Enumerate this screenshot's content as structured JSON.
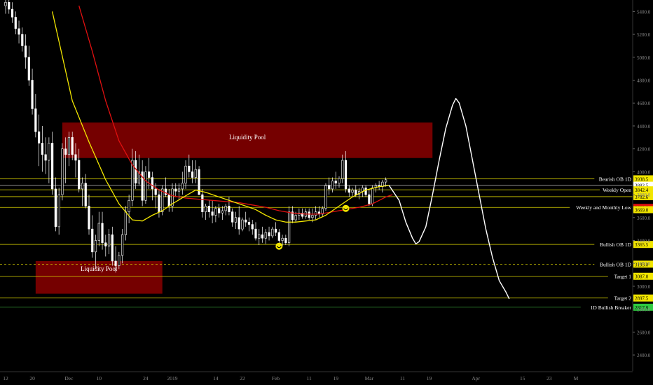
{
  "chart_data": {
    "type": "candlestick",
    "colors": {
      "background": "#000000",
      "up_candle": "#ffffff",
      "down_candle": "#ffffff",
      "ma_fast": "#f2e600",
      "ma_slow": "#e01010",
      "projection": "#ffffff",
      "level_line": "#d8d000",
      "zone_fill": "#8a0000",
      "breaker_line": "#2e8b2e",
      "breaker_tag": "#2ecc40",
      "axis_text": "#888888"
    },
    "y_axis": {
      "ylim": [
        2260,
        5500
      ],
      "ticks": [
        2400,
        2600,
        2800,
        3000,
        3200,
        3400,
        3600,
        3800,
        4000,
        4200,
        4400,
        4600,
        4800,
        5000,
        5200,
        5400
      ],
      "tick_labels": [
        "2400.0",
        "2600.0",
        "2800.0",
        "3000.0",
        "3200.0",
        "3400.0",
        "3600.0",
        "3800.0",
        "4000.0",
        "4200.0",
        "4400.0",
        "4600.0",
        "4800.0",
        "5000.0",
        "5200.0",
        "5400.0"
      ]
    },
    "x_axis": {
      "day_range": [
        0,
        132
      ],
      "ticks": [
        {
          "label": "12",
          "day": 0
        },
        {
          "label": "20",
          "day": 8
        },
        {
          "label": "Dec",
          "day": 19
        },
        {
          "label": "10",
          "day": 28
        },
        {
          "label": "24",
          "day": 42
        },
        {
          "label": "2019",
          "day": 50
        },
        {
          "label": "14",
          "day": 63
        },
        {
          "label": "22",
          "day": 71
        },
        {
          "label": "Feb",
          "day": 81
        },
        {
          "label": "11",
          "day": 91
        },
        {
          "label": "19",
          "day": 99
        },
        {
          "label": "Mar",
          "day": 109
        },
        {
          "label": "11",
          "day": 119
        },
        {
          "label": "19",
          "day": 127
        },
        {
          "label": "Apr",
          "day": 141
        },
        {
          "label": "15",
          "day": 155
        },
        {
          "label": "23",
          "day": 163
        },
        {
          "label": "M",
          "day": 171
        }
      ]
    },
    "zones": [
      {
        "label": "Liquidity Pool",
        "x0": 17,
        "x1": 128,
        "y0": 4120,
        "y1": 4430
      },
      {
        "label": "Liquidity Pool",
        "x0": 9,
        "x1": 47,
        "y0": 2935,
        "y1": 3220
      }
    ],
    "levels": [
      {
        "label": "Bearish OB 1D",
        "value": 3938.5,
        "tag": "3938.5",
        "style": "solid",
        "tag_color": "#f2e600"
      },
      {
        "label": "",
        "value": 3882.5,
        "tag": "3882.5",
        "style": "solid",
        "tag_color": "#ffffff"
      },
      {
        "label": "Weekly Open",
        "value": 3842.4,
        "tag": "3842.4",
        "style": "solid",
        "tag_color": "#f2e600"
      },
      {
        "label": "",
        "value": 3782.6,
        "tag": "3782.6",
        "style": "solid",
        "tag_color": "#f2e600"
      },
      {
        "label": "Weekly and Monthly Low",
        "value": 3689.0,
        "tag": "3689.0",
        "style": "solid",
        "tag_color": "#e01010"
      },
      {
        "label": "",
        "value": 3669.0,
        "tag": "3669.0",
        "style": "none",
        "tag_color": "#f2e600"
      },
      {
        "label": "Bullish OB 1D",
        "value": 3365.5,
        "tag": "3365.5",
        "style": "solid",
        "tag_color": "#f2e600"
      },
      {
        "label": "Bullish OB 1D",
        "value": 3193.0,
        "tag": "3193.0",
        "style": "dashed",
        "tag_color": "#f2e600"
      },
      {
        "label": "Target 1",
        "value": 3087.0,
        "tag": "3087.0",
        "style": "solid",
        "tag_color": "#f2e600"
      },
      {
        "label": "Target 2",
        "value": 2897.5,
        "tag": "2897.5",
        "style": "solid",
        "tag_color": "#f2e600"
      },
      {
        "label": "1D Bullish Breaker",
        "value": 2817.0,
        "tag": "2817.0",
        "style": "solid",
        "tag_color": "#2ecc40"
      }
    ],
    "candles": [
      [
        0,
        5450,
        5520,
        5380,
        5480
      ],
      [
        1,
        5480,
        5520,
        5380,
        5420
      ],
      [
        2,
        5420,
        5480,
        5300,
        5350
      ],
      [
        3,
        5350,
        5400,
        5200,
        5250
      ],
      [
        4,
        5250,
        5320,
        5120,
        5200
      ],
      [
        5,
        5200,
        5260,
        5050,
        5100
      ],
      [
        6,
        5100,
        5200,
        4900,
        5000
      ],
      [
        7,
        5000,
        5100,
        4750,
        4800
      ],
      [
        8,
        4800,
        4900,
        4500,
        4550
      ],
      [
        9,
        4550,
        4680,
        4300,
        4350
      ],
      [
        10,
        4350,
        4500,
        4050,
        4250
      ],
      [
        11,
        4250,
        4400,
        4000,
        4150
      ],
      [
        12,
        4150,
        4300,
        3980,
        4100
      ],
      [
        13,
        4100,
        4300,
        3900,
        4250
      ],
      [
        14,
        4250,
        4350,
        3800,
        3850
      ],
      [
        15,
        3850,
        3950,
        3480,
        3520
      ],
      [
        16,
        3520,
        3860,
        3450,
        3800
      ],
      [
        17,
        3800,
        4250,
        3750,
        4200
      ],
      [
        18,
        4200,
        4300,
        3900,
        4150
      ],
      [
        19,
        4150,
        4350,
        4050,
        4300
      ],
      [
        20,
        4300,
        4350,
        4100,
        4150
      ],
      [
        21,
        4150,
        4250,
        3950,
        4100
      ],
      [
        22,
        4100,
        4200,
        3820,
        3850
      ],
      [
        23,
        3850,
        3950,
        3700,
        3900
      ],
      [
        24,
        3900,
        3980,
        3680,
        3700
      ],
      [
        25,
        3700,
        3800,
        3450,
        3500
      ],
      [
        26,
        3500,
        3620,
        3250,
        3300
      ],
      [
        27,
        3300,
        3450,
        3150,
        3400
      ],
      [
        28,
        3400,
        3650,
        3350,
        3550
      ],
      [
        29,
        3550,
        3650,
        3320,
        3380
      ],
      [
        30,
        3380,
        3450,
        3260,
        3350
      ],
      [
        31,
        3350,
        3500,
        3280,
        3450
      ],
      [
        32,
        3450,
        3520,
        3180,
        3220
      ],
      [
        33,
        3220,
        3350,
        3120,
        3180
      ],
      [
        34,
        3180,
        3300,
        3150,
        3270
      ],
      [
        35,
        3270,
        3500,
        3200,
        3450
      ],
      [
        36,
        3450,
        3700,
        3400,
        3650
      ],
      [
        37,
        3650,
        3800,
        3550,
        3750
      ],
      [
        38,
        3750,
        4200,
        3700,
        4100
      ],
      [
        39,
        4100,
        4180,
        3850,
        3900
      ],
      [
        40,
        3900,
        4150,
        3880,
        4000
      ],
      [
        41,
        4000,
        4100,
        3700,
        3750
      ],
      [
        42,
        3750,
        4050,
        3720,
        4000
      ],
      [
        43,
        4000,
        4120,
        3850,
        3950
      ],
      [
        44,
        3950,
        4000,
        3750,
        3850
      ],
      [
        45,
        3850,
        3900,
        3680,
        3800
      ],
      [
        46,
        3800,
        3850,
        3600,
        3650
      ],
      [
        47,
        3650,
        3880,
        3620,
        3850
      ],
      [
        48,
        3850,
        3950,
        3780,
        3800
      ],
      [
        49,
        3800,
        3850,
        3650,
        3700
      ],
      [
        50,
        3700,
        3900,
        3650,
        3850
      ],
      [
        51,
        3850,
        3900,
        3780,
        3830
      ],
      [
        52,
        3830,
        3900,
        3750,
        3850
      ],
      [
        53,
        3850,
        4000,
        3800,
        3900
      ],
      [
        54,
        3900,
        4100,
        3850,
        4050
      ],
      [
        55,
        4050,
        4150,
        3950,
        4000
      ],
      [
        56,
        4000,
        4100,
        3900,
        3950
      ],
      [
        57,
        3950,
        4100,
        3900,
        4020
      ],
      [
        58,
        4020,
        4050,
        3800,
        3800
      ],
      [
        59,
        3800,
        3850,
        3600,
        3650
      ],
      [
        60,
        3650,
        3720,
        3580,
        3700
      ],
      [
        61,
        3700,
        3750,
        3600,
        3650
      ],
      [
        62,
        3650,
        3750,
        3550,
        3620
      ],
      [
        63,
        3620,
        3700,
        3560,
        3680
      ],
      [
        64,
        3680,
        3720,
        3600,
        3640
      ],
      [
        65,
        3640,
        3700,
        3580,
        3660
      ],
      [
        66,
        3660,
        3720,
        3620,
        3700
      ],
      [
        67,
        3700,
        3780,
        3620,
        3650
      ],
      [
        68,
        3650,
        3680,
        3520,
        3560
      ],
      [
        69,
        3560,
        3650,
        3500,
        3600
      ],
      [
        70,
        3600,
        3700,
        3450,
        3500
      ],
      [
        71,
        3500,
        3600,
        3480,
        3580
      ],
      [
        72,
        3580,
        3650,
        3520,
        3560
      ],
      [
        73,
        3560,
        3600,
        3480,
        3540
      ],
      [
        74,
        3540,
        3580,
        3450,
        3500
      ],
      [
        75,
        3500,
        3560,
        3400,
        3420
      ],
      [
        76,
        3420,
        3500,
        3360,
        3450
      ],
      [
        77,
        3450,
        3520,
        3380,
        3420
      ],
      [
        78,
        3420,
        3500,
        3370,
        3470
      ],
      [
        79,
        3470,
        3520,
        3400,
        3440
      ],
      [
        80,
        3440,
        3520,
        3420,
        3500
      ],
      [
        81,
        3500,
        3560,
        3440,
        3470
      ],
      [
        82,
        3470,
        3500,
        3380,
        3400
      ],
      [
        83,
        3400,
        3450,
        3350,
        3420
      ],
      [
        84,
        3420,
        3450,
        3360,
        3380
      ],
      [
        85,
        3380,
        3700,
        3350,
        3650
      ],
      [
        86,
        3650,
        3700,
        3550,
        3580
      ],
      [
        87,
        3580,
        3650,
        3560,
        3620
      ],
      [
        88,
        3620,
        3680,
        3580,
        3640
      ],
      [
        89,
        3640,
        3680,
        3590,
        3610
      ],
      [
        90,
        3610,
        3680,
        3590,
        3650
      ],
      [
        91,
        3650,
        3680,
        3580,
        3600
      ],
      [
        92,
        3600,
        3680,
        3560,
        3620
      ],
      [
        93,
        3620,
        3700,
        3580,
        3650
      ],
      [
        94,
        3650,
        3700,
        3600,
        3630
      ],
      [
        95,
        3630,
        3700,
        3610,
        3680
      ],
      [
        96,
        3680,
        3900,
        3660,
        3880
      ],
      [
        97,
        3880,
        3950,
        3800,
        3850
      ],
      [
        98,
        3850,
        3950,
        3820,
        3920
      ],
      [
        99,
        3920,
        4000,
        3850,
        3900
      ],
      [
        100,
        3900,
        3960,
        3860,
        3940
      ],
      [
        101,
        3940,
        4150,
        3900,
        4100
      ],
      [
        102,
        4100,
        4180,
        3820,
        3850
      ],
      [
        103,
        3850,
        3880,
        3780,
        3820
      ],
      [
        104,
        3820,
        3860,
        3780,
        3840
      ],
      [
        105,
        3840,
        3880,
        3780,
        3800
      ],
      [
        106,
        3800,
        3860,
        3760,
        3830
      ],
      [
        107,
        3830,
        3880,
        3780,
        3860
      ],
      [
        108,
        3860,
        3880,
        3780,
        3800
      ],
      [
        109,
        3800,
        3840,
        3700,
        3720
      ],
      [
        110,
        3720,
        3880,
        3700,
        3860
      ],
      [
        111,
        3860,
        3900,
        3820,
        3880
      ],
      [
        112,
        3880,
        3920,
        3840,
        3870
      ],
      [
        113,
        3870,
        3930,
        3820,
        3910
      ],
      [
        114,
        3910,
        3950,
        3870,
        3930
      ]
    ],
    "ma_fast_points": [
      [
        14,
        5400
      ],
      [
        20,
        4620
      ],
      [
        25,
        4260
      ],
      [
        30,
        3930
      ],
      [
        34,
        3720
      ],
      [
        38,
        3580
      ],
      [
        41,
        3570
      ],
      [
        44,
        3620
      ],
      [
        47,
        3660
      ],
      [
        50,
        3720
      ],
      [
        54,
        3790
      ],
      [
        57,
        3840
      ],
      [
        60,
        3820
      ],
      [
        63,
        3790
      ],
      [
        66,
        3760
      ],
      [
        69,
        3730
      ],
      [
        72,
        3700
      ],
      [
        75,
        3670
      ],
      [
        78,
        3620
      ],
      [
        81,
        3580
      ],
      [
        84,
        3560
      ],
      [
        87,
        3560
      ],
      [
        90,
        3570
      ],
      [
        93,
        3580
      ],
      [
        96,
        3620
      ],
      [
        100,
        3700
      ],
      [
        104,
        3780
      ],
      [
        108,
        3840
      ],
      [
        112,
        3870
      ],
      [
        115,
        3880
      ]
    ],
    "ma_slow_points": [
      [
        22,
        5450
      ],
      [
        26,
        5050
      ],
      [
        30,
        4620
      ],
      [
        34,
        4270
      ],
      [
        38,
        4060
      ],
      [
        42,
        3920
      ],
      [
        46,
        3840
      ],
      [
        50,
        3790
      ],
      [
        54,
        3770
      ],
      [
        58,
        3760
      ],
      [
        62,
        3750
      ],
      [
        66,
        3740
      ],
      [
        70,
        3730
      ],
      [
        74,
        3710
      ],
      [
        78,
        3690
      ],
      [
        82,
        3660
      ],
      [
        86,
        3640
      ],
      [
        90,
        3630
      ],
      [
        94,
        3630
      ],
      [
        98,
        3650
      ],
      [
        102,
        3670
      ],
      [
        106,
        3690
      ],
      [
        110,
        3720
      ],
      [
        114,
        3780
      ],
      [
        116,
        3800
      ]
    ],
    "projection_points": [
      [
        115,
        3880
      ],
      [
        118,
        3750
      ],
      [
        120,
        3560
      ],
      [
        122,
        3420
      ],
      [
        123,
        3370
      ],
      [
        124,
        3390
      ],
      [
        126,
        3520
      ],
      [
        128,
        3800
      ],
      [
        130,
        4100
      ],
      [
        132,
        4380
      ],
      [
        134,
        4580
      ],
      [
        135,
        4640
      ],
      [
        136,
        4600
      ],
      [
        138,
        4400
      ],
      [
        140,
        4100
      ],
      [
        142,
        3800
      ],
      [
        144,
        3500
      ],
      [
        146,
        3250
      ],
      [
        148,
        3050
      ],
      [
        150,
        2950
      ],
      [
        151,
        2890
      ]
    ],
    "markers": [
      {
        "day": 82,
        "value": 3350
      },
      {
        "day": 102,
        "value": 3680
      }
    ]
  }
}
